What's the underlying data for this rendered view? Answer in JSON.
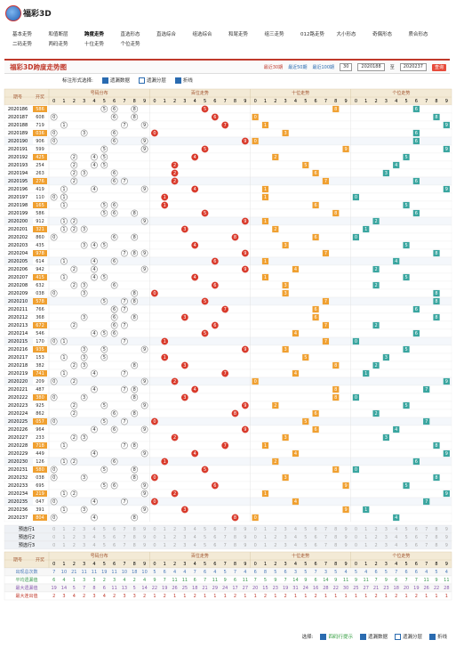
{
  "header": {
    "brand": "福彩3D"
  },
  "nav": [
    "基本走势",
    "和值断层",
    "跨度走势",
    "直选形态",
    "直选综合",
    "组选综合",
    "和尾走势",
    "组三走势",
    "012路走势",
    "大小形态",
    "奇偶形态",
    "质合形态",
    "二码走势",
    "两码走势",
    "十位走势",
    "个位走势"
  ],
  "nav_active": 2,
  "toolbar": {
    "title": "福彩3D跨度走势图",
    "recent": [
      "最近30期",
      "最近50期",
      "最近100期"
    ],
    "select": "30",
    "from": "2020188",
    "to_label": "至",
    "to": "2020237",
    "query": "查询"
  },
  "options": {
    "label": "标注形式选择:",
    "items": [
      {
        "text": "遗漏数据",
        "checked": true
      },
      {
        "text": "遗漏分层",
        "checked": false
      },
      {
        "text": "折线",
        "checked": true
      }
    ]
  },
  "table": {
    "head": {
      "issue": "期号",
      "number": "开奖",
      "groups": [
        "号码分布",
        "百位走势",
        "十位走势",
        "个位走势"
      ],
      "digits": [
        "0",
        "1",
        "2",
        "3",
        "4",
        "5",
        "6",
        "7",
        "8",
        "9"
      ]
    },
    "rows": [
      {
        "issue": "2020186",
        "number": "586",
        "digits": [
          5,
          8,
          6
        ]
      },
      {
        "issue": "2020187",
        "number": "608",
        "digits": [
          6,
          0,
          8
        ]
      },
      {
        "issue": "2020188",
        "number": "719",
        "digits": [
          7,
          1,
          9
        ]
      },
      {
        "issue": "2020189",
        "number": "036",
        "digits": [
          0,
          3,
          6
        ]
      },
      {
        "issue": "2020190",
        "number": "906",
        "digits": [
          9,
          0,
          6
        ]
      },
      {
        "issue": "2020191",
        "number": "599",
        "digits": [
          5,
          9,
          9
        ]
      },
      {
        "issue": "2020192",
        "number": "425",
        "digits": [
          4,
          2,
          5
        ]
      },
      {
        "issue": "2020193",
        "number": "254",
        "digits": [
          2,
          5,
          4
        ]
      },
      {
        "issue": "2020194",
        "number": "263",
        "digits": [
          2,
          6,
          3
        ]
      },
      {
        "issue": "2020195",
        "number": "276",
        "digits": [
          2,
          7,
          6
        ]
      },
      {
        "issue": "2020196",
        "number": "419",
        "digits": [
          4,
          1,
          9
        ]
      },
      {
        "issue": "2020197",
        "number": "110",
        "digits": [
          1,
          1,
          0
        ]
      },
      {
        "issue": "2020198",
        "number": "165",
        "digits": [
          1,
          6,
          5
        ]
      },
      {
        "issue": "2020199",
        "number": "586",
        "digits": [
          5,
          8,
          6
        ]
      },
      {
        "issue": "2020200",
        "number": "912",
        "digits": [
          9,
          1,
          2
        ]
      },
      {
        "issue": "2020201",
        "number": "321",
        "digits": [
          3,
          2,
          1
        ]
      },
      {
        "issue": "2020202",
        "number": "860",
        "digits": [
          8,
          6,
          0
        ]
      },
      {
        "issue": "2020203",
        "number": "435",
        "digits": [
          4,
          3,
          5
        ]
      },
      {
        "issue": "2020204",
        "number": "978",
        "digits": [
          9,
          7,
          8
        ]
      },
      {
        "issue": "2020205",
        "number": "614",
        "digits": [
          6,
          1,
          4
        ]
      },
      {
        "issue": "2020206",
        "number": "942",
        "digits": [
          9,
          4,
          2
        ]
      },
      {
        "issue": "2020207",
        "number": "415",
        "digits": [
          4,
          1,
          5
        ]
      },
      {
        "issue": "2020208",
        "number": "632",
        "digits": [
          6,
          3,
          2
        ]
      },
      {
        "issue": "2020209",
        "number": "038",
        "digits": [
          0,
          3,
          8
        ]
      },
      {
        "issue": "2020210",
        "number": "578",
        "digits": [
          5,
          7,
          8
        ]
      },
      {
        "issue": "2020211",
        "number": "766",
        "digits": [
          7,
          6,
          6
        ]
      },
      {
        "issue": "2020212",
        "number": "368",
        "digits": [
          3,
          6,
          8
        ]
      },
      {
        "issue": "2020213",
        "number": "672",
        "digits": [
          6,
          7,
          2
        ]
      },
      {
        "issue": "2020214",
        "number": "546",
        "digits": [
          5,
          4,
          6
        ]
      },
      {
        "issue": "2020215",
        "number": "170",
        "digits": [
          1,
          7,
          0
        ]
      },
      {
        "issue": "2020216",
        "number": "935",
        "digits": [
          9,
          3,
          5
        ]
      },
      {
        "issue": "2020217",
        "number": "153",
        "digits": [
          1,
          5,
          3
        ]
      },
      {
        "issue": "2020218",
        "number": "382",
        "digits": [
          3,
          8,
          2
        ]
      },
      {
        "issue": "2020219",
        "number": "741",
        "digits": [
          7,
          4,
          1
        ]
      },
      {
        "issue": "2020220",
        "number": "209",
        "digits": [
          2,
          0,
          9
        ]
      },
      {
        "issue": "2020221",
        "number": "487",
        "digits": [
          4,
          8,
          7
        ]
      },
      {
        "issue": "2020222",
        "number": "380",
        "digits": [
          3,
          8,
          0
        ]
      },
      {
        "issue": "2020223",
        "number": "925",
        "digits": [
          9,
          2,
          5
        ]
      },
      {
        "issue": "2020224",
        "number": "862",
        "digits": [
          8,
          6,
          2
        ]
      },
      {
        "issue": "2020225",
        "number": "057",
        "digits": [
          0,
          5,
          7
        ]
      },
      {
        "issue": "2020226",
        "number": "964",
        "digits": [
          9,
          6,
          4
        ]
      },
      {
        "issue": "2020227",
        "number": "233",
        "digits": [
          2,
          3,
          3
        ]
      },
      {
        "issue": "2020228",
        "number": "718",
        "digits": [
          7,
          1,
          8
        ]
      },
      {
        "issue": "2020229",
        "number": "449",
        "digits": [
          4,
          4,
          9
        ]
      },
      {
        "issue": "2020230",
        "number": "126",
        "digits": [
          1,
          2,
          6
        ]
      },
      {
        "issue": "2020231",
        "number": "580",
        "digits": [
          5,
          8,
          0
        ]
      },
      {
        "issue": "2020232",
        "number": "038",
        "digits": [
          0,
          3,
          8
        ]
      },
      {
        "issue": "2020233",
        "number": "695",
        "digits": [
          6,
          9,
          5
        ]
      },
      {
        "issue": "2020234",
        "number": "219",
        "digits": [
          2,
          1,
          9
        ]
      },
      {
        "issue": "2020235",
        "number": "047",
        "digits": [
          0,
          4,
          7
        ]
      },
      {
        "issue": "2020236",
        "number": "391",
        "digits": [
          3,
          9,
          1
        ]
      },
      {
        "issue": "2020237",
        "number": "804",
        "digits": [
          8,
          0,
          4
        ]
      }
    ],
    "preselect": [
      "预选行1",
      "预选行2",
      "预选行3"
    ],
    "stats": [
      {
        "label": "出现总次数",
        "values": [
          7,
          10,
          21,
          11,
          11,
          19,
          11,
          10,
          18,
          10,
          5,
          6,
          4,
          4,
          7,
          6,
          4,
          5,
          7,
          4,
          6,
          8,
          5,
          6,
          3,
          5,
          7,
          3,
          5,
          4,
          5,
          4,
          6,
          5,
          7,
          6,
          6,
          4,
          5,
          4
        ]
      },
      {
        "label": "平均遗漏值",
        "values": [
          6,
          4,
          1,
          3,
          3,
          2,
          3,
          4,
          2,
          4,
          9,
          7,
          11,
          11,
          6,
          7,
          11,
          9,
          6,
          11,
          7,
          5,
          9,
          7,
          14,
          9,
          6,
          14,
          9,
          11,
          9,
          11,
          7,
          9,
          6,
          7,
          7,
          11,
          9,
          11
        ]
      },
      {
        "label": "最大遗漏值",
        "values": [
          19,
          14,
          5,
          7,
          8,
          6,
          11,
          13,
          5,
          14,
          22,
          19,
          26,
          25,
          18,
          21,
          29,
          24,
          17,
          27,
          20,
          15,
          23,
          19,
          31,
          24,
          16,
          28,
          22,
          30,
          25,
          27,
          21,
          23,
          18,
          20,
          19,
          26,
          22,
          28
        ]
      },
      {
        "label": "最大连出值",
        "values": [
          2,
          3,
          4,
          2,
          3,
          4,
          2,
          3,
          3,
          2,
          1,
          2,
          1,
          1,
          2,
          1,
          1,
          1,
          2,
          1,
          1,
          2,
          1,
          2,
          1,
          1,
          2,
          1,
          1,
          1,
          1,
          1,
          2,
          1,
          2,
          1,
          2,
          1,
          1,
          1
        ]
      }
    ]
  },
  "footer": {
    "label": "选择:",
    "items": [
      "四码行提示",
      "遗漏数据",
      "遗漏分层",
      "折线"
    ]
  }
}
